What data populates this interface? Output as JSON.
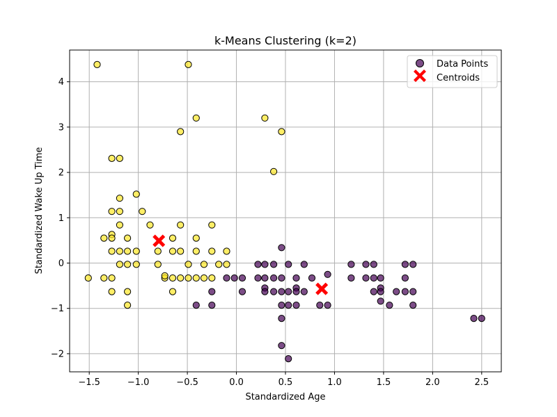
{
  "chart_data": {
    "type": "scatter",
    "title": "k-Means Clustering (k=2)",
    "xlabel": "Standardized Age",
    "ylabel": "Standardized Wake Up Time",
    "xlim": [
      -1.7,
      2.7
    ],
    "ylim": [
      -2.4,
      4.7
    ],
    "x_ticks": [
      -1.5,
      -1.0,
      -0.5,
      0.0,
      0.5,
      1.0,
      1.5,
      2.0,
      2.5
    ],
    "x_tick_labels": [
      "−1.5",
      "−1.0",
      "−0.5",
      "0.0",
      "0.5",
      "1.0",
      "1.5",
      "2.0",
      "2.5"
    ],
    "y_ticks": [
      -2,
      -1,
      0,
      1,
      2,
      3,
      4
    ],
    "y_tick_labels": [
      "−2",
      "−1",
      "0",
      "1",
      "2",
      "3",
      "4"
    ],
    "grid": true,
    "legend_position": "top-right",
    "colors": {
      "cluster_0": "#440154",
      "cluster_1": "#fde725",
      "centroid": "#ff0000",
      "grid": "#b0b0b0"
    },
    "series": [
      {
        "name": "Data Points",
        "kind": "points",
        "points": [
          [
            -1.42,
            4.38,
            1
          ],
          [
            -0.49,
            4.38,
            1
          ],
          [
            -0.41,
            3.2,
            1
          ],
          [
            0.29,
            3.2,
            1
          ],
          [
            -0.57,
            2.9,
            1
          ],
          [
            0.46,
            2.9,
            1
          ],
          [
            0.38,
            2.02,
            1
          ],
          [
            -1.27,
            2.31,
            1
          ],
          [
            -1.19,
            2.31,
            1
          ],
          [
            -1.02,
            1.52,
            1
          ],
          [
            -1.19,
            1.43,
            1
          ],
          [
            -1.27,
            1.14,
            1
          ],
          [
            -1.19,
            1.14,
            1
          ],
          [
            -0.96,
            1.14,
            1
          ],
          [
            -1.19,
            0.84,
            1
          ],
          [
            -0.88,
            0.84,
            1
          ],
          [
            -0.57,
            0.84,
            1
          ],
          [
            -0.25,
            0.84,
            1
          ],
          [
            -1.27,
            0.63,
            1
          ],
          [
            -1.35,
            0.55,
            1
          ],
          [
            -1.27,
            0.55,
            1
          ],
          [
            -1.11,
            0.55,
            1
          ],
          [
            -0.65,
            0.55,
            1
          ],
          [
            -0.41,
            0.55,
            1
          ],
          [
            -1.27,
            0.26,
            1
          ],
          [
            -1.19,
            0.26,
            1
          ],
          [
            -1.11,
            0.26,
            1
          ],
          [
            -1.02,
            0.26,
            1
          ],
          [
            -0.8,
            0.26,
            1
          ],
          [
            -0.65,
            0.26,
            1
          ],
          [
            -0.57,
            0.26,
            1
          ],
          [
            -0.41,
            0.26,
            1
          ],
          [
            -0.25,
            0.26,
            1
          ],
          [
            -0.1,
            0.26,
            1
          ],
          [
            -1.19,
            -0.03,
            1
          ],
          [
            -1.11,
            -0.03,
            1
          ],
          [
            -1.02,
            -0.03,
            1
          ],
          [
            -0.8,
            -0.03,
            1
          ],
          [
            -0.49,
            -0.03,
            1
          ],
          [
            -0.33,
            -0.03,
            1
          ],
          [
            -0.18,
            -0.03,
            1
          ],
          [
            -0.1,
            -0.03,
            1
          ],
          [
            -1.51,
            -0.33,
            1
          ],
          [
            -1.35,
            -0.33,
            1
          ],
          [
            -1.27,
            -0.33,
            1
          ],
          [
            -0.73,
            -0.33,
            1
          ],
          [
            -0.73,
            -0.28,
            1
          ],
          [
            -0.65,
            -0.33,
            1
          ],
          [
            -0.57,
            -0.33,
            1
          ],
          [
            -0.49,
            -0.33,
            1
          ],
          [
            -0.41,
            -0.33,
            1
          ],
          [
            -0.33,
            -0.33,
            1
          ],
          [
            -0.25,
            -0.33,
            1
          ],
          [
            -1.27,
            -0.63,
            1
          ],
          [
            -1.11,
            -0.63,
            1
          ],
          [
            -0.65,
            -0.63,
            1
          ],
          [
            -1.11,
            -0.93,
            1
          ],
          [
            0.46,
            0.34,
            0
          ],
          [
            0.22,
            -0.03,
            0
          ],
          [
            0.29,
            -0.03,
            0
          ],
          [
            0.38,
            -0.03,
            0
          ],
          [
            0.53,
            -0.03,
            0
          ],
          [
            0.69,
            -0.03,
            0
          ],
          [
            1.17,
            -0.03,
            0
          ],
          [
            1.32,
            -0.03,
            0
          ],
          [
            1.4,
            -0.03,
            0
          ],
          [
            1.72,
            -0.03,
            0
          ],
          [
            1.8,
            -0.03,
            0
          ],
          [
            -0.1,
            -0.33,
            0
          ],
          [
            -0.02,
            -0.33,
            0
          ],
          [
            0.06,
            -0.33,
            0
          ],
          [
            0.22,
            -0.33,
            0
          ],
          [
            0.29,
            -0.33,
            0
          ],
          [
            0.38,
            -0.33,
            0
          ],
          [
            0.46,
            -0.33,
            0
          ],
          [
            0.61,
            -0.33,
            0
          ],
          [
            0.77,
            -0.33,
            0
          ],
          [
            0.93,
            -0.25,
            0
          ],
          [
            1.17,
            -0.33,
            0
          ],
          [
            1.32,
            -0.33,
            0
          ],
          [
            1.4,
            -0.33,
            0
          ],
          [
            1.47,
            -0.33,
            0
          ],
          [
            1.72,
            -0.33,
            0
          ],
          [
            -0.25,
            -0.63,
            0
          ],
          [
            0.06,
            -0.63,
            0
          ],
          [
            0.29,
            -0.55,
            0
          ],
          [
            0.29,
            -0.63,
            0
          ],
          [
            0.38,
            -0.63,
            0
          ],
          [
            0.46,
            -0.63,
            0
          ],
          [
            0.53,
            -0.63,
            0
          ],
          [
            0.61,
            -0.55,
            0
          ],
          [
            0.61,
            -0.63,
            0
          ],
          [
            0.69,
            -0.63,
            0
          ],
          [
            1.4,
            -0.63,
            0
          ],
          [
            1.47,
            -0.55,
            0
          ],
          [
            1.47,
            -0.63,
            0
          ],
          [
            1.63,
            -0.63,
            0
          ],
          [
            1.72,
            -0.63,
            0
          ],
          [
            1.8,
            -0.63,
            0
          ],
          [
            -0.41,
            -0.93,
            0
          ],
          [
            -0.25,
            -0.93,
            0
          ],
          [
            0.46,
            -0.93,
            0
          ],
          [
            0.53,
            -0.93,
            0
          ],
          [
            0.61,
            -0.93,
            0
          ],
          [
            0.85,
            -0.93,
            0
          ],
          [
            0.93,
            -0.93,
            0
          ],
          [
            1.47,
            -0.84,
            0
          ],
          [
            1.56,
            -0.93,
            0
          ],
          [
            1.8,
            -0.93,
            0
          ],
          [
            0.46,
            -1.22,
            0
          ],
          [
            2.42,
            -1.22,
            0
          ],
          [
            2.5,
            -1.22,
            0
          ],
          [
            0.46,
            -1.82,
            0
          ],
          [
            0.53,
            -2.11,
            0
          ]
        ]
      },
      {
        "name": "Centroids",
        "kind": "centroids",
        "points": [
          [
            -0.79,
            0.49
          ],
          [
            0.87,
            -0.57
          ]
        ]
      }
    ]
  }
}
